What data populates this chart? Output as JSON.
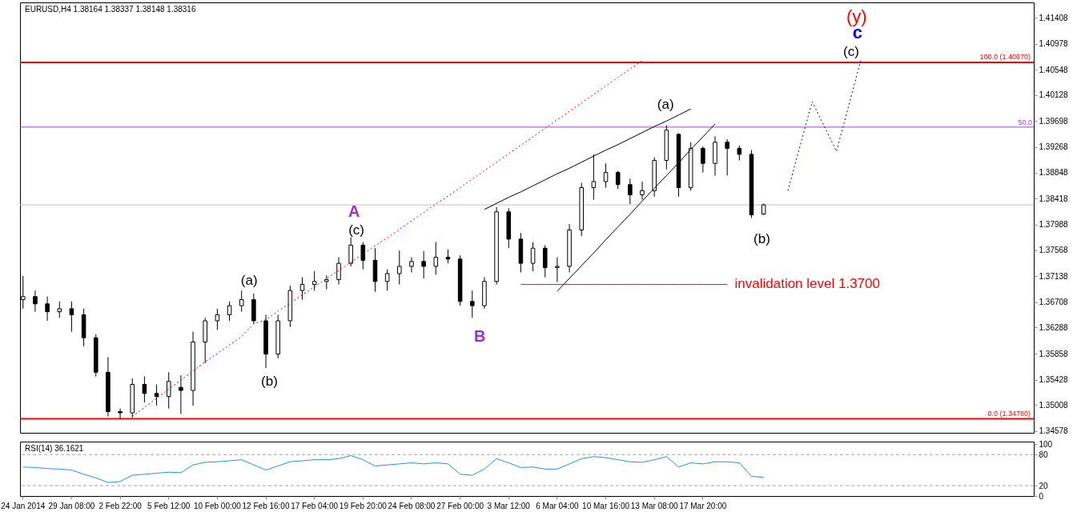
{
  "chart_data": [
    {
      "type": "candlestick",
      "title": "EURUSD,H4  1.38164 1.38337 1.38148 1.38316",
      "categories": [
        null,
        null,
        null,
        null,
        null,
        null,
        null,
        null,
        null,
        null,
        null,
        null,
        null,
        null,
        null,
        null,
        null,
        null,
        null,
        null,
        null,
        null,
        null,
        null,
        null,
        null,
        null,
        null,
        null,
        null,
        null,
        null,
        null,
        null,
        null,
        null,
        null,
        null,
        null,
        null,
        null,
        null,
        null,
        null,
        null,
        null,
        null,
        null,
        null,
        null,
        null,
        null,
        null,
        null,
        null,
        null,
        null,
        null,
        null,
        null,
        null,
        null,
        null,
        null,
        null,
        null,
        null,
        null,
        null,
        null,
        null,
        null,
        null,
        null,
        null,
        null,
        null,
        null,
        null,
        null,
        null,
        null,
        null,
        null
      ],
      "ohlc": [
        [
          1.3675,
          1.3714,
          1.366,
          1.368
        ],
        [
          1.368,
          1.369,
          1.3655,
          1.3668
        ],
        [
          1.3668,
          1.368,
          1.364,
          1.3655
        ],
        [
          1.3655,
          1.3672,
          1.3645,
          1.366
        ],
        [
          1.366,
          1.3672,
          1.3622,
          1.365
        ],
        [
          1.365,
          1.366,
          1.3598,
          1.3612
        ],
        [
          1.3612,
          1.3618,
          1.3548,
          1.3555
        ],
        [
          1.3555,
          1.358,
          1.3482,
          1.349
        ],
        [
          1.349,
          1.3495,
          1.3478,
          1.3488
        ],
        [
          1.3488,
          1.3545,
          1.348,
          1.3535
        ],
        [
          1.3535,
          1.3548,
          1.3505,
          1.352
        ],
        [
          1.352,
          1.3535,
          1.35,
          1.3515
        ],
        [
          1.3515,
          1.3555,
          1.3495,
          1.354
        ],
        [
          1.353,
          1.355,
          1.3486,
          1.3525
        ],
        [
          1.3525,
          1.3622,
          1.35,
          1.3605
        ],
        [
          1.3605,
          1.3645,
          1.357,
          1.364
        ],
        [
          1.364,
          1.366,
          1.3625,
          1.365
        ],
        [
          1.365,
          1.3672,
          1.364,
          1.3665
        ],
        [
          1.3665,
          1.369,
          1.3655,
          1.3675
        ],
        [
          1.3675,
          1.3685,
          1.3635,
          1.364
        ],
        [
          1.364,
          1.365,
          1.3562,
          1.3585
        ],
        [
          1.3585,
          1.365,
          1.3578,
          1.364
        ],
        [
          1.364,
          1.3698,
          1.363,
          1.369
        ],
        [
          1.369,
          1.3712,
          1.3675,
          1.37
        ],
        [
          1.37,
          1.3722,
          1.369,
          1.3705
        ],
        [
          1.3705,
          1.3715,
          1.3692,
          1.3708
        ],
        [
          1.3708,
          1.3745,
          1.37,
          1.3735
        ],
        [
          1.3735,
          1.3778,
          1.373,
          1.3765
        ],
        [
          1.3765,
          1.377,
          1.3725,
          1.374
        ],
        [
          1.374,
          1.376,
          1.3688,
          1.3705
        ],
        [
          1.3705,
          1.3725,
          1.369,
          1.3718
        ],
        [
          1.3718,
          1.3756,
          1.37,
          1.373
        ],
        [
          1.373,
          1.3745,
          1.372,
          1.3738
        ],
        [
          1.3738,
          1.3755,
          1.371,
          1.373
        ],
        [
          1.373,
          1.377,
          1.3716,
          1.3745
        ],
        [
          1.3745,
          1.3758,
          1.3735,
          1.3742
        ],
        [
          1.3742,
          1.3748,
          1.3665,
          1.3672
        ],
        [
          1.3672,
          1.369,
          1.3645,
          1.3665
        ],
        [
          1.3665,
          1.3712,
          1.366,
          1.3705
        ],
        [
          1.3705,
          1.3828,
          1.37,
          1.382
        ],
        [
          1.382,
          1.3826,
          1.376,
          1.3775
        ],
        [
          1.3775,
          1.3785,
          1.372,
          1.3735
        ],
        [
          1.3735,
          1.377,
          1.3722,
          1.376
        ],
        [
          1.376,
          1.3765,
          1.3712,
          1.3728
        ],
        [
          1.3728,
          1.3745,
          1.3704,
          1.373
        ],
        [
          1.373,
          1.38,
          1.372,
          1.379
        ],
        [
          1.379,
          1.3868,
          1.378,
          1.386
        ],
        [
          1.386,
          1.3915,
          1.384,
          1.387
        ],
        [
          1.387,
          1.39,
          1.386,
          1.3885
        ],
        [
          1.3885,
          1.3888,
          1.3858,
          1.3865
        ],
        [
          1.3865,
          1.3875,
          1.3833,
          1.3848
        ],
        [
          1.3848,
          1.387,
          1.384,
          1.3855
        ],
        [
          1.3855,
          1.391,
          1.3845,
          1.3905
        ],
        [
          1.3905,
          1.3963,
          1.389,
          1.3955
        ],
        [
          1.3948,
          1.395,
          1.3845,
          1.386
        ],
        [
          1.386,
          1.3935,
          1.3855,
          1.3925
        ],
        [
          1.3925,
          1.3928,
          1.3885,
          1.39
        ],
        [
          1.39,
          1.3945,
          1.388,
          1.3935
        ],
        [
          1.3935,
          1.394,
          1.388,
          1.3925
        ],
        [
          1.3925,
          1.393,
          1.3905,
          1.3915
        ],
        [
          1.3915,
          1.3922,
          1.381,
          1.3815
        ],
        [
          1.38164,
          1.38337,
          1.38148,
          1.38316
        ],
        null,
        null,
        null,
        null,
        null,
        null,
        null,
        null,
        null,
        null,
        null,
        null,
        null,
        null,
        null,
        null,
        null,
        null,
        null,
        null,
        null,
        null
      ],
      "ylim": [
        1.3455,
        1.4166
      ],
      "yticks": [
        1.34578,
        1.35008,
        1.35428,
        1.35858,
        1.36288,
        1.36708,
        1.37138,
        1.37568,
        1.37988,
        1.38418,
        1.38848,
        1.39268,
        1.39698,
        1.40128,
        1.40548,
        1.40978,
        1.41408
      ],
      "tick_labels": "y",
      "series": [
        {
          "type": "line",
          "color": "#ff0000",
          "line_style": "dotted",
          "values": [
            null,
            null,
            null,
            null,
            null,
            null,
            null,
            null,
            null,
            1.3482,
            1.3497,
            1.3512,
            1.3527,
            1.3542,
            1.3557,
            1.3572,
            1.3586,
            1.36,
            1.3614,
            1.3635,
            1.3642,
            1.3656,
            1.3669,
            1.3683,
            1.3696,
            1.371,
            1.3723,
            1.3737,
            1.375,
            1.3764,
            1.3777,
            1.3791,
            1.3805,
            1.3819,
            1.3833,
            1.3846,
            1.386,
            1.3874,
            1.3888,
            1.3902,
            1.3916,
            1.393,
            1.3944,
            1.3958,
            1.3972,
            1.3986,
            1.4,
            1.4014,
            1.4028,
            1.4042,
            1.4056,
            1.407,
            null,
            null,
            null,
            null,
            null,
            null,
            null,
            null,
            null,
            null,
            null,
            null,
            null,
            null,
            null,
            null,
            null,
            null,
            null,
            null,
            null,
            null,
            null,
            null,
            null,
            null,
            null,
            null,
            null,
            null,
            null,
            null
          ]
        },
        {
          "type": "line",
          "color": "#000000",
          "line_style": "solid",
          "values": [
            null,
            null,
            null,
            null,
            null,
            null,
            null,
            null,
            null,
            null,
            null,
            null,
            null,
            null,
            null,
            null,
            null,
            null,
            null,
            null,
            null,
            null,
            null,
            null,
            null,
            null,
            null,
            null,
            null,
            null,
            null,
            null,
            null,
            null,
            null,
            null,
            null,
            null,
            1.3824,
            1.3834,
            1.3844,
            1.3853,
            1.3863,
            1.3873,
            1.3883,
            1.3892,
            1.3902,
            1.3912,
            1.3922,
            1.3931,
            1.3941,
            1.3951,
            1.3961,
            1.397,
            1.398,
            1.399,
            null,
            null,
            null,
            null,
            null,
            null,
            null,
            null,
            null,
            null,
            null,
            null,
            null,
            null,
            null,
            null,
            null,
            null,
            null,
            null,
            null,
            null,
            null,
            null,
            null,
            null,
            null,
            null
          ]
        },
        {
          "type": "line",
          "color": "#000000",
          "line_style": "solid",
          "values": [
            null,
            null,
            null,
            null,
            null,
            null,
            null,
            null,
            null,
            null,
            null,
            null,
            null,
            null,
            null,
            null,
            null,
            null,
            null,
            null,
            null,
            null,
            null,
            null,
            null,
            null,
            null,
            null,
            null,
            null,
            null,
            null,
            null,
            null,
            null,
            null,
            null,
            null,
            null,
            null,
            null,
            null,
            null,
            null,
            1.3689,
            1.371,
            1.3731,
            1.3752,
            1.3774,
            1.3795,
            1.3816,
            1.3838,
            1.3859,
            1.388,
            1.3901,
            1.3923,
            1.3944,
            1.3965,
            null,
            null,
            null,
            null,
            null,
            null,
            null,
            null,
            null,
            null,
            null,
            null,
            null,
            null,
            null,
            null,
            null,
            null,
            null,
            null,
            null,
            null,
            null,
            null,
            null,
            null
          ]
        },
        {
          "type": "line",
          "color": "#0000ff",
          "line_style": "dotted",
          "values": [
            null,
            null,
            null,
            null,
            null,
            null,
            null,
            null,
            null,
            null,
            null,
            null,
            null,
            null,
            null,
            null,
            null,
            null,
            null,
            null,
            null,
            null,
            null,
            null,
            null,
            null,
            null,
            null,
            null,
            null,
            null,
            null,
            null,
            null,
            null,
            null,
            null,
            null,
            null,
            null,
            null,
            null,
            null,
            null,
            null,
            null,
            null,
            null,
            null,
            null,
            null,
            null,
            null,
            null,
            null,
            null,
            null,
            null,
            null,
            null,
            null,
            null,
            null,
            1.3855,
            1.3929,
            1.4002,
            1.3961,
            1.392,
            1.3995,
            1.407,
            null,
            null,
            null,
            null,
            null,
            null,
            null,
            null,
            null,
            null,
            null,
            null,
            null,
            null
          ]
        },
        {
          "type": "line",
          "color": "#ff0000",
          "line_style": "solid",
          "values": [
            null,
            null,
            null,
            null,
            null,
            null,
            null,
            null,
            null,
            null,
            null,
            null,
            null,
            null,
            null,
            null,
            null,
            null,
            null,
            null,
            null,
            null,
            null,
            null,
            null,
            null,
            null,
            null,
            null,
            null,
            null,
            null,
            null,
            null,
            null,
            null,
            null,
            null,
            null,
            null,
            null,
            1.37,
            1.37,
            1.37,
            1.37,
            1.37,
            1.37,
            1.37,
            1.37,
            1.37,
            1.37,
            1.37,
            1.37,
            1.37,
            1.37,
            1.37,
            1.37,
            1.37,
            1.37,
            null,
            null,
            null,
            null,
            null,
            null,
            null,
            null,
            null,
            null,
            null,
            null,
            null,
            null,
            null,
            null,
            null,
            null,
            null,
            null,
            null,
            null,
            null,
            null,
            null
          ]
        }
      ],
      "ref_lines": [
        {
          "axis": "y",
          "value": 1.4067,
          "label": "100.0 (1.40670)",
          "color": "#ff0000"
        },
        {
          "axis": "y",
          "value": 1.396,
          "color": "#a040e0"
        },
        {
          "axis": "y",
          "value": 1.38316,
          "color": "#c0c0c0"
        },
        {
          "axis": "y",
          "value": 1.3478,
          "label": "0.0 (1.34780)",
          "color": "#ff0000"
        }
      ],
      "annotations": [
        "(y)",
        "c",
        "(c)",
        "(a)",
        "(b)",
        "A",
        "(c)",
        "(a)",
        "(b)",
        "B",
        "invalidation level 1.3700",
        "50.0"
      ]
    },
    {
      "type": "line",
      "title": "RSI(14) 36.1621",
      "categories": [
        "24 Jan 2014",
        null,
        null,
        null,
        "29 Jan 08:00",
        null,
        null,
        null,
        "2 Feb 22:00",
        null,
        null,
        null,
        "5 Feb 12:00",
        null,
        null,
        null,
        "10 Feb 00:00",
        null,
        null,
        null,
        "12 Feb 16:00",
        null,
        null,
        null,
        "17 Feb 04:00",
        null,
        null,
        null,
        "19 Feb 20:00",
        null,
        null,
        null,
        "24 Feb 08:00",
        null,
        null,
        null,
        "27 Feb 00:00",
        null,
        null,
        null,
        "3 Mar 12:00",
        null,
        null,
        null,
        "6 Mar 04:00",
        null,
        null,
        null,
        "10 Mar 16:00",
        null,
        null,
        null,
        "13 Mar 08:00",
        null,
        null,
        null,
        "17 Mar 20:00",
        null,
        null,
        null,
        null,
        null,
        null,
        null,
        null,
        null,
        null,
        null,
        null,
        null,
        null,
        null,
        null,
        null,
        null,
        null,
        null,
        null,
        null,
        null,
        null,
        null,
        null,
        null
      ],
      "series": [
        {
          "color": "#1e90ff",
          "values": [
            56,
            55,
            53,
            52,
            50,
            42,
            35,
            26,
            28,
            40,
            42,
            44,
            46,
            45,
            60,
            65,
            66,
            68,
            70,
            60,
            50,
            58,
            66,
            68,
            70,
            70,
            72,
            78,
            70,
            58,
            60,
            62,
            64,
            62,
            64,
            62,
            42,
            40,
            52,
            72,
            64,
            55,
            56,
            52,
            52,
            62,
            72,
            76,
            74,
            70,
            66,
            65,
            70,
            76,
            56,
            64,
            62,
            66,
            66,
            64,
            38,
            36,
            null,
            null,
            null,
            null,
            null,
            null,
            null,
            null,
            null,
            null,
            null,
            null,
            null,
            null,
            null,
            null,
            null,
            null,
            null,
            null,
            null,
            null
          ]
        }
      ],
      "ylim": [
        0,
        105
      ],
      "yticks": [
        0,
        20,
        80,
        100
      ],
      "ref_lines": [
        {
          "axis": "y",
          "value": 80,
          "color": "#a0a0a0",
          "line_style": "dashed"
        },
        {
          "axis": "y",
          "value": 20,
          "color": "#a0a0a0",
          "line_style": "dashed"
        }
      ]
    }
  ]
}
